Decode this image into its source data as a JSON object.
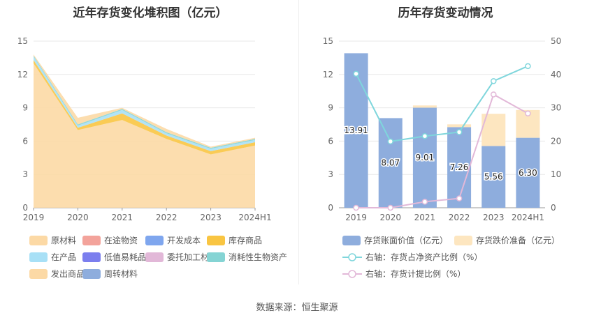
{
  "left": {
    "title": "近年存货变化堆积图（亿元）",
    "categories": [
      "2019",
      "2020",
      "2021",
      "2022",
      "2023",
      "2024H1"
    ],
    "y_ticks": [
      "0",
      "3",
      "6",
      "9",
      "12",
      "15"
    ],
    "legend": [
      {
        "label": "原材料",
        "color": "#fcd9a5"
      },
      {
        "label": "在途物资",
        "color": "#f3a39b"
      },
      {
        "label": "开发成本",
        "color": "#7fa6ee"
      },
      {
        "label": "库存商品",
        "color": "#f9c542"
      },
      {
        "label": "在产品",
        "color": "#a8e0f6"
      },
      {
        "label": "低值易耗品",
        "color": "#7b7eee"
      },
      {
        "label": "委托加工材料",
        "color": "#e2b8d8"
      },
      {
        "label": "消耗性生物资产",
        "color": "#85d4d4"
      },
      {
        "label": "发出商品",
        "color": "#fcd9a5"
      },
      {
        "label": "周转材料",
        "color": "#8eaddd"
      }
    ]
  },
  "right": {
    "title": "历年存货变动情况",
    "categories": [
      "2019",
      "2020",
      "2021",
      "2022",
      "2023",
      "2024H1"
    ],
    "y_left_ticks": [
      "0",
      "3",
      "6",
      "9",
      "12",
      "15"
    ],
    "y_right_ticks": [
      "0",
      "10",
      "20",
      "30",
      "40",
      "50"
    ],
    "bar_labels": [
      "13.91",
      "8.07",
      "9.01",
      "7.26",
      "5.56",
      "6.30"
    ],
    "legend": [
      {
        "label": "存货账面价值（亿元）",
        "color": "#8eaddd",
        "kind": "bar"
      },
      {
        "label": "存货跌价准备（亿元）",
        "color": "#fde6c0",
        "kind": "bar"
      },
      {
        "label": "右轴：存货占净资产比例（%）",
        "color": "#7fd6dc",
        "kind": "line"
      },
      {
        "label": "右轴：存货计提比例（%）",
        "color": "#e2b8d8",
        "kind": "line"
      }
    ]
  },
  "source": "数据来源：恒生聚源",
  "chart_data": [
    {
      "type": "area",
      "title": "近年存货变化堆积图（亿元）",
      "categories": [
        "2019",
        "2020",
        "2021",
        "2022",
        "2023",
        "2024H1"
      ],
      "ylim": [
        0,
        15
      ],
      "grid": true,
      "legend_position": "bottom",
      "series": [
        {
          "name": "原材料",
          "values": [
            13.0,
            7.0,
            7.9,
            6.2,
            4.8,
            5.6
          ]
        },
        {
          "name": "在途物资",
          "values": [
            0,
            0,
            0,
            0,
            0,
            0
          ]
        },
        {
          "name": "开发成本",
          "values": [
            0,
            0,
            0,
            0,
            0,
            0
          ]
        },
        {
          "name": "库存商品",
          "values": [
            0.3,
            0.2,
            0.6,
            0.3,
            0.3,
            0.3
          ]
        },
        {
          "name": "在产品",
          "values": [
            0.3,
            0.2,
            0.3,
            0.2,
            0.2,
            0.2
          ]
        },
        {
          "name": "低值易耗品",
          "values": [
            0,
            0,
            0,
            0,
            0,
            0
          ]
        },
        {
          "name": "委托加工材料",
          "values": [
            0,
            0,
            0,
            0,
            0,
            0
          ]
        },
        {
          "name": "消耗性生物资产",
          "values": [
            0.1,
            0.1,
            0.1,
            0.1,
            0.1,
            0.1
          ]
        },
        {
          "name": "发出商品",
          "values": [
            0.1,
            0.6,
            0.1,
            0.3,
            0.1,
            0.1
          ]
        },
        {
          "name": "周转材料",
          "values": [
            0,
            0,
            0,
            0,
            0,
            0
          ]
        }
      ]
    },
    {
      "type": "bar",
      "title": "历年存货变动情况",
      "categories": [
        "2019",
        "2020",
        "2021",
        "2022",
        "2023",
        "2024H1"
      ],
      "ylim": [
        0,
        15
      ],
      "y2lim": [
        0,
        50
      ],
      "grid": true,
      "legend_position": "bottom",
      "series": [
        {
          "name": "存货账面价值（亿元）",
          "type": "bar",
          "stack": "inv",
          "values": [
            13.91,
            8.07,
            9.01,
            7.26,
            5.56,
            6.3
          ]
        },
        {
          "name": "存货跌价准备（亿元）",
          "type": "bar",
          "stack": "inv",
          "values": [
            0,
            0,
            0.2,
            0.25,
            2.9,
            2.5
          ]
        },
        {
          "name": "右轴：存货占净资产比例（%）",
          "type": "line",
          "axis": "right",
          "values": [
            40.2,
            19.9,
            21.5,
            22.7,
            38.0,
            42.5
          ]
        },
        {
          "name": "右轴：存货计提比例（%）",
          "type": "line",
          "axis": "right",
          "values": [
            0.0,
            0.0,
            1.8,
            2.8,
            34.0,
            28.3
          ]
        }
      ]
    }
  ]
}
